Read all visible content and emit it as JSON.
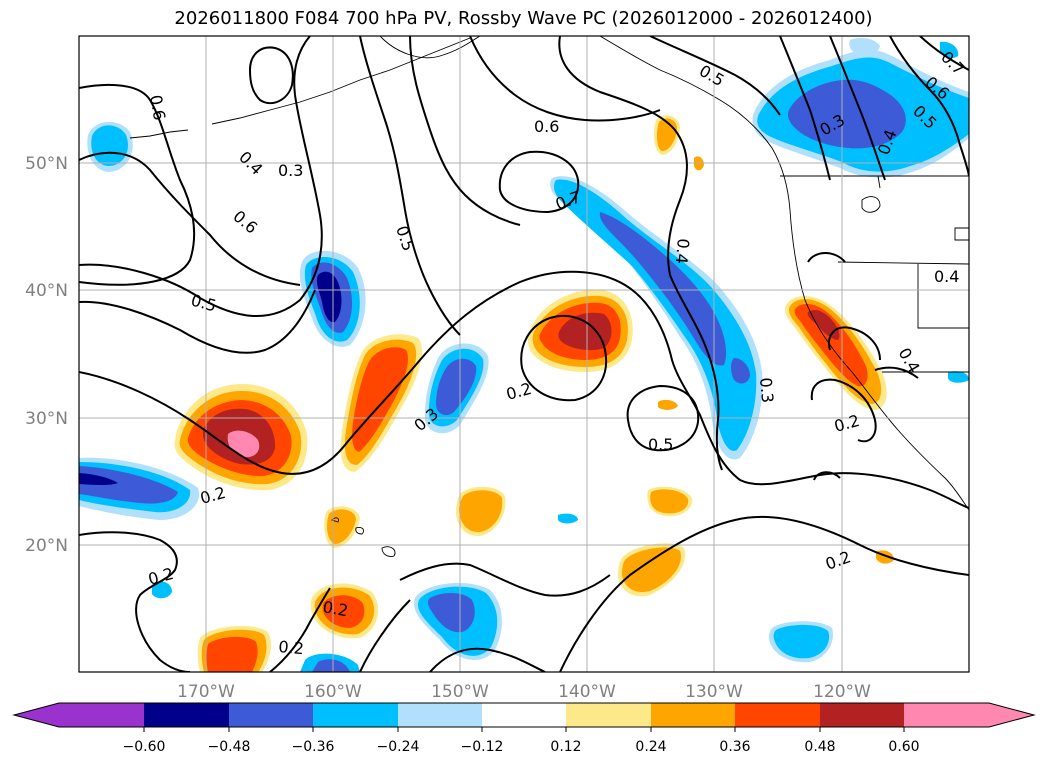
{
  "title": "2026011800 F084 700 hPa PV, Rossby Wave PC (2026012000 - 2026012400)",
  "map": {
    "lon_range": [
      -180,
      -110
    ],
    "lat_range": [
      10,
      60
    ],
    "lon_ticks": [
      "170°W",
      "160°W",
      "150°W",
      "140°W",
      "130°W",
      "120°W"
    ],
    "lat_ticks": [
      "20°N",
      "30°N",
      "40°N",
      "50°N"
    ],
    "gridlines": true
  },
  "colorbar": {
    "ticks": [
      "−0.60",
      "−0.48",
      "−0.36",
      "−0.24",
      "−0.12",
      "0.12",
      "0.24",
      "0.36",
      "0.48",
      "0.60"
    ],
    "colors": {
      "under": "#9a32cd",
      "n60": "#00008b",
      "n48": "#3d5bd6",
      "n36": "#00bfff",
      "n24": "#b0e0fb",
      "zero": "#ffffff",
      "p12": "#fde98a",
      "p24": "#ffa500",
      "p36": "#ff4500",
      "p48": "#b22222",
      "over": "#ff87b0"
    }
  },
  "contour_labels": [
    {
      "text": "0.6"
    },
    {
      "text": "0.4"
    },
    {
      "text": "0.3"
    },
    {
      "text": "0.6"
    },
    {
      "text": "0.5"
    },
    {
      "text": "0.5"
    },
    {
      "text": "0.6"
    },
    {
      "text": "0.7"
    },
    {
      "text": "0.5"
    },
    {
      "text": "0.4"
    },
    {
      "text": "0.2"
    },
    {
      "text": "0.3"
    },
    {
      "text": "0.5"
    },
    {
      "text": "0.3"
    },
    {
      "text": "0.2"
    },
    {
      "text": "0.4"
    },
    {
      "text": "0.2"
    },
    {
      "text": "0.2"
    },
    {
      "text": "0.2"
    },
    {
      "text": "0.2"
    },
    {
      "text": "0.3"
    },
    {
      "text": "0.6"
    },
    {
      "text": "0.5"
    },
    {
      "text": "0.4"
    },
    {
      "text": "0.7"
    },
    {
      "text": "0.4"
    },
    {
      "text": "0.2"
    }
  ]
}
